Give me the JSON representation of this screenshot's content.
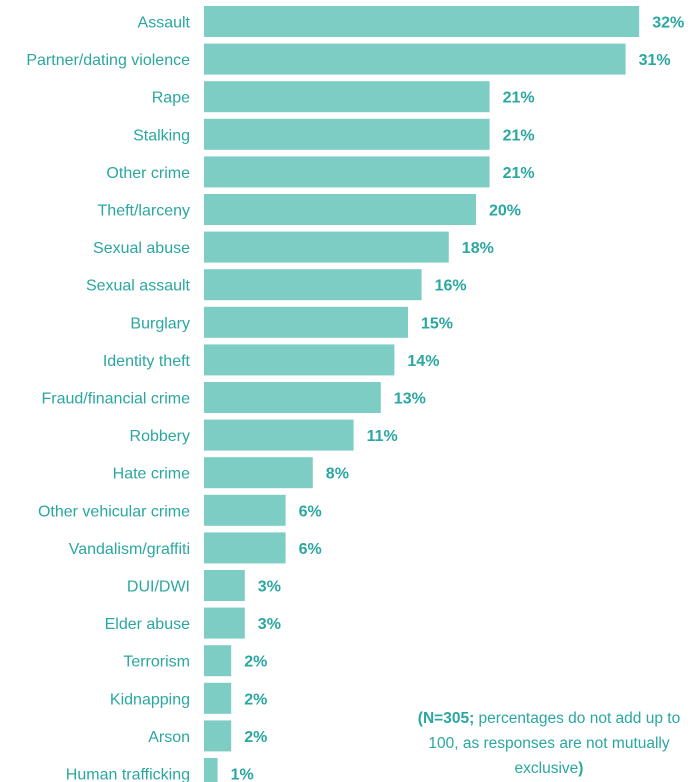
{
  "chart_data": {
    "type": "bar",
    "orientation": "horizontal",
    "categories": [
      "Assault",
      "Partner/dating violence",
      "Rape",
      "Stalking",
      "Other crime",
      "Theft/larceny",
      "Sexual abuse",
      "Sexual assault",
      "Burglary",
      "Identity theft",
      "Fraud/financial crime",
      "Robbery",
      "Hate crime",
      "Other vehicular crime",
      "Vandalism/graffiti",
      "DUI/DWI",
      "Elder abuse",
      "Terrorism",
      "Kidnapping",
      "Arson",
      "Human trafficking"
    ],
    "values": [
      32,
      31,
      21,
      21,
      21,
      20,
      18,
      16,
      15,
      14,
      13,
      11,
      8,
      6,
      6,
      3,
      3,
      2,
      2,
      2,
      1
    ],
    "value_labels": [
      "32%",
      "31%",
      "21%",
      "21%",
      "21%",
      "20%",
      "18%",
      "16%",
      "15%",
      "14%",
      "13%",
      "11%",
      "8%",
      "6%",
      "6%",
      "3%",
      "3%",
      "2%",
      "2%",
      "2%",
      "1%"
    ],
    "xlim": [
      0,
      32
    ],
    "grid": false,
    "colors": {
      "bar": "#7dcdc5",
      "text": "#2aa7a0"
    }
  },
  "note": {
    "bold_part": "(N=305;",
    "rest": " percentages do not add up to 100, as responses are not mutually exclusive",
    "close": ")"
  }
}
